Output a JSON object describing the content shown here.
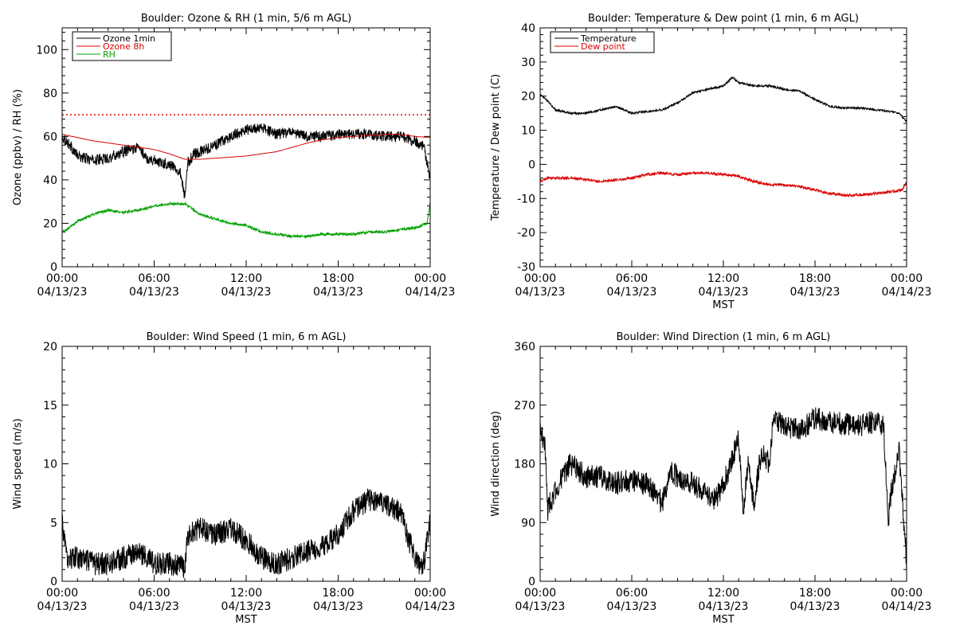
{
  "chart_data": [
    {
      "type": "line",
      "title": "Boulder: Ozone & RH (1 min, 5/6 m AGL)",
      "ylabel": "Ozone (ppbv) / RH (%)",
      "xlabel": "",
      "ylim": [
        0,
        110
      ],
      "yticks": [
        0,
        20,
        40,
        60,
        80,
        100
      ],
      "xticks": [
        {
          "line1": "00:00",
          "line2": "04/13/23"
        },
        {
          "line1": "06:00",
          "line2": "04/13/23"
        },
        {
          "line1": "12:00",
          "line2": "04/13/23"
        },
        {
          "line1": "18:00",
          "line2": "04/13/23"
        },
        {
          "line1": "00:00",
          "line2": "04/14/23"
        }
      ],
      "xlim_hours": [
        0,
        24
      ],
      "legend_placement": "top-left",
      "reference_lines": [
        {
          "y": 70,
          "color": "#dd0000",
          "style": "dotted"
        }
      ],
      "series": [
        {
          "name": "Ozone 1min",
          "color": "#000000",
          "noise": 2.5,
          "points": [
            [
              0,
              60
            ],
            [
              0.5,
              56
            ],
            [
              1,
              51
            ],
            [
              2,
              49
            ],
            [
              3,
              50
            ],
            [
              4,
              53
            ],
            [
              5,
              55
            ],
            [
              5.5,
              50
            ],
            [
              6,
              49
            ],
            [
              7,
              47
            ],
            [
              7.7,
              44
            ],
            [
              8,
              32
            ],
            [
              8.2,
              48
            ],
            [
              8.6,
              52
            ],
            [
              9,
              53
            ],
            [
              10,
              56
            ],
            [
              11,
              60
            ],
            [
              12,
              63
            ],
            [
              13,
              64
            ],
            [
              14,
              61
            ],
            [
              15,
              62
            ],
            [
              16,
              60
            ],
            [
              17,
              60
            ],
            [
              18,
              61
            ],
            [
              19,
              61
            ],
            [
              20,
              61
            ],
            [
              21,
              60
            ],
            [
              22,
              60
            ],
            [
              23,
              58
            ],
            [
              23.6,
              55
            ],
            [
              24,
              40
            ]
          ]
        },
        {
          "name": "Ozone 8h",
          "color": "#dd0000",
          "noise": 0,
          "points": [
            [
              0,
              61
            ],
            [
              1,
              59.5
            ],
            [
              2,
              58
            ],
            [
              3,
              57
            ],
            [
              4,
              56
            ],
            [
              5,
              55
            ],
            [
              6,
              54
            ],
            [
              7,
              52
            ],
            [
              8,
              49.5
            ],
            [
              9,
              49.5
            ],
            [
              10,
              50
            ],
            [
              11,
              50.5
            ],
            [
              12,
              51
            ],
            [
              13,
              52
            ],
            [
              14,
              53
            ],
            [
              15,
              55
            ],
            [
              16,
              57
            ],
            [
              17,
              58.5
            ],
            [
              18,
              59.5
            ],
            [
              19,
              60
            ],
            [
              20,
              60.5
            ],
            [
              21,
              61
            ],
            [
              22,
              61
            ],
            [
              23,
              60
            ],
            [
              24,
              59.5
            ]
          ]
        },
        {
          "name": "RH",
          "color": "#00a000",
          "noise": 0.6,
          "points": [
            [
              0,
              16
            ],
            [
              0.3,
              17
            ],
            [
              1,
              21
            ],
            [
              2,
              24
            ],
            [
              3,
              26
            ],
            [
              4,
              25
            ],
            [
              5,
              26
            ],
            [
              6,
              28
            ],
            [
              7,
              29
            ],
            [
              8,
              29
            ],
            [
              9,
              24
            ],
            [
              10,
              22
            ],
            [
              11,
              20
            ],
            [
              12,
              19
            ],
            [
              13,
              16
            ],
            [
              14,
              15
            ],
            [
              15,
              14
            ],
            [
              16,
              14
            ],
            [
              17,
              15
            ],
            [
              18,
              15
            ],
            [
              19,
              15
            ],
            [
              20,
              16
            ],
            [
              21,
              16
            ],
            [
              22,
              17
            ],
            [
              23,
              18
            ],
            [
              23.8,
              20
            ],
            [
              24,
              30
            ]
          ]
        }
      ]
    },
    {
      "type": "line",
      "title": "Boulder: Temperature & Dew point (1 min, 6 m AGL)",
      "ylabel": "Temperature / Dew point (C)",
      "xlabel": "MST",
      "ylim": [
        -30,
        40
      ],
      "yticks": [
        -30,
        -20,
        -10,
        0,
        10,
        20,
        30,
        40
      ],
      "xticks": [
        {
          "line1": "00:00",
          "line2": "04/13/23"
        },
        {
          "line1": "06:00",
          "line2": "04/13/23"
        },
        {
          "line1": "12:00",
          "line2": "04/13/23"
        },
        {
          "line1": "18:00",
          "line2": "04/13/23"
        },
        {
          "line1": "00:00",
          "line2": "04/14/23"
        }
      ],
      "xlim_hours": [
        0,
        24
      ],
      "legend_placement": "top-left",
      "reference_lines": [],
      "series": [
        {
          "name": "Temperature",
          "color": "#000000",
          "noise": 0.3,
          "points": [
            [
              0,
              20.5
            ],
            [
              0.5,
              18.5
            ],
            [
              1,
              16
            ],
            [
              1.5,
              15.5
            ],
            [
              2,
              15
            ],
            [
              3,
              15
            ],
            [
              4,
              16
            ],
            [
              5,
              17
            ],
            [
              6,
              15
            ],
            [
              7,
              15.5
            ],
            [
              8,
              16
            ],
            [
              9,
              18
            ],
            [
              10,
              21
            ],
            [
              11,
              22
            ],
            [
              12,
              23
            ],
            [
              12.6,
              25.5
            ],
            [
              13,
              24
            ],
            [
              14,
              23
            ],
            [
              15,
              23
            ],
            [
              16,
              22
            ],
            [
              17,
              21.5
            ],
            [
              18,
              19
            ],
            [
              19,
              17
            ],
            [
              20,
              16.5
            ],
            [
              21,
              16.5
            ],
            [
              22,
              16
            ],
            [
              23,
              15.5
            ],
            [
              23.5,
              15
            ],
            [
              24,
              12.5
            ]
          ]
        },
        {
          "name": "Dew point",
          "color": "#dd0000",
          "noise": 0.4,
          "points": [
            [
              0,
              -5
            ],
            [
              0.5,
              -4
            ],
            [
              1,
              -4
            ],
            [
              2,
              -4
            ],
            [
              3,
              -4.5
            ],
            [
              4,
              -5
            ],
            [
              5,
              -4.5
            ],
            [
              6,
              -4
            ],
            [
              7,
              -3
            ],
            [
              8,
              -2.5
            ],
            [
              9,
              -3
            ],
            [
              10,
              -2.5
            ],
            [
              11,
              -2.5
            ],
            [
              12,
              -3
            ],
            [
              13,
              -3.5
            ],
            [
              14,
              -5
            ],
            [
              15,
              -6
            ],
            [
              16,
              -6
            ],
            [
              17,
              -6.5
            ],
            [
              18,
              -7.5
            ],
            [
              19,
              -8.5
            ],
            [
              20,
              -9
            ],
            [
              21,
              -9
            ],
            [
              22,
              -8.5
            ],
            [
              23,
              -8
            ],
            [
              23.7,
              -7.5
            ],
            [
              24,
              -5
            ]
          ]
        }
      ]
    },
    {
      "type": "line",
      "title": "Boulder: Wind Speed (1 min, 6 m AGL)",
      "ylabel": "Wind speed (m/s)",
      "xlabel": "MST",
      "ylim": [
        0,
        20
      ],
      "yticks": [
        0,
        5,
        10,
        15,
        20
      ],
      "xticks": [
        {
          "line1": "00:00",
          "line2": "04/13/23"
        },
        {
          "line1": "06:00",
          "line2": "04/13/23"
        },
        {
          "line1": "12:00",
          "line2": "04/13/23"
        },
        {
          "line1": "18:00",
          "line2": "04/13/23"
        },
        {
          "line1": "00:00",
          "line2": "04/14/23"
        }
      ],
      "xlim_hours": [
        0,
        24
      ],
      "legend_placement": "none",
      "reference_lines": [],
      "series": [
        {
          "name": "",
          "color": "#000000",
          "noise": 1.0,
          "points": [
            [
              0,
              5
            ],
            [
              0.3,
              2
            ],
            [
              1,
              2
            ],
            [
              2,
              1.5
            ],
            [
              3,
              1.5
            ],
            [
              4,
              2
            ],
            [
              5,
              2.5
            ],
            [
              6,
              1.5
            ],
            [
              7,
              1.5
            ],
            [
              8,
              1.2
            ],
            [
              8.2,
              4
            ],
            [
              9,
              4.5
            ],
            [
              10,
              4
            ],
            [
              11,
              4.5
            ],
            [
              12,
              3.5
            ],
            [
              13,
              2
            ],
            [
              14,
              1.5
            ],
            [
              15,
              2
            ],
            [
              16,
              2.5
            ],
            [
              17,
              3
            ],
            [
              18,
              4
            ],
            [
              19,
              6
            ],
            [
              20,
              7
            ],
            [
              21,
              6.5
            ],
            [
              22,
              6
            ],
            [
              23,
              2
            ],
            [
              23.5,
              1
            ],
            [
              24,
              5
            ]
          ]
        }
      ]
    },
    {
      "type": "line",
      "title": "Boulder: Wind Direction (1 min, 6 m AGL)",
      "ylabel": "Wind direction (deg)",
      "xlabel": "MST",
      "ylim": [
        0,
        360
      ],
      "yticks": [
        0,
        90,
        180,
        270,
        360
      ],
      "xticks": [
        {
          "line1": "00:00",
          "line2": "04/13/23"
        },
        {
          "line1": "06:00",
          "line2": "04/13/23"
        },
        {
          "line1": "12:00",
          "line2": "04/13/23"
        },
        {
          "line1": "18:00",
          "line2": "04/13/23"
        },
        {
          "line1": "00:00",
          "line2": "04/14/23"
        }
      ],
      "xlim_hours": [
        0,
        24
      ],
      "legend_placement": "none",
      "reference_lines": [],
      "series": [
        {
          "name": "",
          "color": "#000000",
          "noise": 18,
          "points": [
            [
              0,
              235
            ],
            [
              0.3,
              210
            ],
            [
              0.5,
              110
            ],
            [
              1,
              140
            ],
            [
              2,
              180
            ],
            [
              3,
              160
            ],
            [
              4,
              160
            ],
            [
              5,
              150
            ],
            [
              6,
              155
            ],
            [
              7,
              150
            ],
            [
              8,
              120
            ],
            [
              8.5,
              170
            ],
            [
              9,
              160
            ],
            [
              10,
              150
            ],
            [
              11,
              130
            ],
            [
              11.5,
              125
            ],
            [
              12,
              150
            ],
            [
              12.5,
              180
            ],
            [
              13,
              220
            ],
            [
              13.3,
              100
            ],
            [
              13.6,
              180
            ],
            [
              14,
              120
            ],
            [
              14.5,
              200
            ],
            [
              15,
              180
            ],
            [
              15.3,
              250
            ],
            [
              16,
              240
            ],
            [
              17,
              230
            ],
            [
              18,
              250
            ],
            [
              19,
              245
            ],
            [
              20,
              240
            ],
            [
              21,
              240
            ],
            [
              22,
              245
            ],
            [
              22.5,
              235
            ],
            [
              22.8,
              90
            ],
            [
              23,
              140
            ],
            [
              23.5,
              200
            ],
            [
              24,
              30
            ]
          ]
        }
      ]
    }
  ]
}
